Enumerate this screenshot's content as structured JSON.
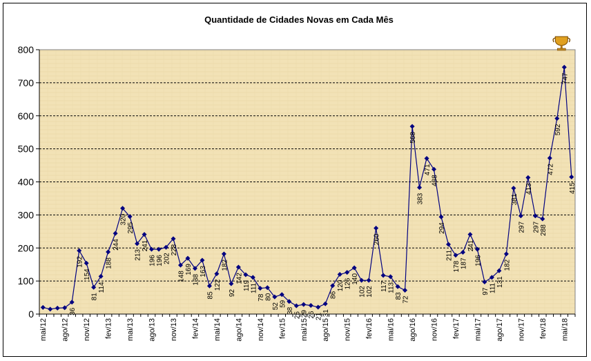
{
  "chart_data": {
    "type": "line",
    "title": "Quantidade de Cidades Novas em Cada Mês",
    "ylim": [
      0,
      800
    ],
    "y_ticks": [
      0,
      100,
      200,
      300,
      400,
      500,
      600,
      700,
      800
    ],
    "grid": "horizontal-dashed",
    "legend": "none",
    "x_labels": [
      "mai/12",
      "ago/12",
      "nov/12",
      "fev/13",
      "mai/13",
      "ago/13",
      "nov/13",
      "fev/14",
      "mai/14",
      "ago/14",
      "nov/14",
      "fev/15",
      "mai/15",
      "ago/15",
      "nov/15",
      "fev/16",
      "mai/16",
      "ago/16",
      "nov/16",
      "fev/17",
      "mai/17",
      "ago/17",
      "nov/17",
      "fev/18",
      "mai/18"
    ],
    "series": [
      {
        "values": [
          20,
          15,
          18,
          19,
          36,
          192,
          154,
          81,
          114,
          188,
          244,
          320,
          295,
          213,
          241,
          196,
          196,
          202,
          228,
          148,
          169,
          138,
          163,
          85,
          122,
          182,
          92,
          142,
          119,
          111,
          78,
          80,
          52,
          59,
          38,
          25,
          29,
          26,
          21,
          31,
          86,
          120,
          126,
          140,
          102,
          102,
          260,
          117,
          113,
          83,
          72,
          568,
          383,
          471,
          438,
          294,
          211,
          178,
          187,
          241,
          196,
          97,
          111,
          131,
          182,
          381,
          297,
          413,
          297,
          288,
          472,
          592,
          747,
          415
        ],
        "data_labels": [
          "",
          "",
          "",
          "",
          "36",
          "192",
          "154",
          "81",
          "114",
          "188",
          "244",
          "320",
          "295",
          "213",
          "241",
          "196",
          "196",
          "202",
          "228",
          "148",
          "169",
          "138",
          "163",
          "85",
          "122",
          "182",
          "92",
          "142",
          "119",
          "111",
          "78",
          "80",
          "52",
          "59",
          "38",
          "25",
          "29",
          "26",
          "21",
          "31",
          "86",
          "120",
          "126",
          "140",
          "102",
          "102",
          "260",
          "117",
          "113",
          "83",
          "72",
          "568",
          "383",
          "471",
          "438",
          "294",
          "211",
          "178",
          "187",
          "241",
          "196",
          "97",
          "111",
          "131",
          "182",
          "381",
          "297",
          "413",
          "297",
          "288",
          "472",
          "592",
          "747",
          "415"
        ]
      }
    ],
    "colors": {
      "line": "#000080",
      "marker": "#000080",
      "plot_bg": "#F2E2B6"
    },
    "icons": [
      "trophy-icon"
    ]
  }
}
